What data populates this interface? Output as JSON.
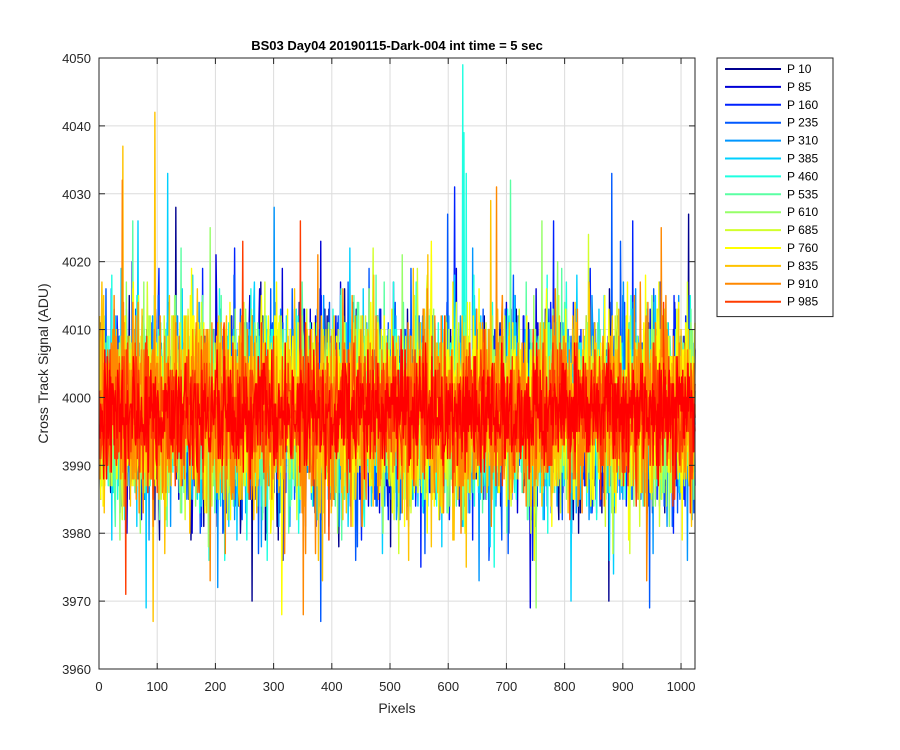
{
  "chart_data": {
    "type": "line",
    "title": "BS03 Day04 20190115-Dark-004 int time = 5 sec",
    "xlabel": "Pixels",
    "ylabel": "Cross Track Signal (ADU)",
    "xlim": [
      0,
      1024
    ],
    "ylim": [
      3960,
      4050
    ],
    "xticks": [
      0,
      100,
      200,
      300,
      400,
      500,
      600,
      700,
      800,
      900,
      1000
    ],
    "yticks": [
      3960,
      3970,
      3980,
      3990,
      4000,
      4010,
      4020,
      4030,
      4040,
      4050
    ],
    "grid": true,
    "legend_position": "outside-top-right",
    "n_points": 1024,
    "series": [
      {
        "name": "P 10",
        "color": "#00008f",
        "mean": 3998,
        "std": 7,
        "spikes": [
          [
            131,
            4028
          ],
          [
            262,
            3970
          ],
          [
            500,
            3978
          ],
          [
            875,
            3970
          ],
          [
            1012,
            4027
          ]
        ]
      },
      {
        "name": "P 85",
        "color": "#0000d6",
        "mean": 3998,
        "std": 7,
        "spikes": [
          [
            200,
            4021
          ],
          [
            380,
            4023
          ],
          [
            660,
            3985
          ],
          [
            740,
            3969
          ]
        ]
      },
      {
        "name": "P 160",
        "color": "#0022ff",
        "mean": 3998,
        "std": 7,
        "spikes": [
          [
            232,
            4022
          ],
          [
            450,
            3979
          ],
          [
            610,
            4031
          ],
          [
            916,
            4026
          ]
        ]
      },
      {
        "name": "P 235",
        "color": "#0059ff",
        "mean": 3998,
        "std": 7,
        "spikes": [
          [
            380,
            3967
          ],
          [
            598,
            4027
          ],
          [
            880,
            4033
          ],
          [
            945,
            3969
          ]
        ]
      },
      {
        "name": "P 310",
        "color": "#0096ff",
        "mean": 3998,
        "std": 7,
        "spikes": [
          [
            20,
            4016
          ],
          [
            300,
            4028
          ],
          [
            641,
            4022
          ]
        ]
      },
      {
        "name": "P 385",
        "color": "#00d0ff",
        "mean": 3998,
        "std": 7,
        "spikes": [
          [
            66,
            4026
          ],
          [
            117,
            4033
          ],
          [
            80,
            3969
          ],
          [
            430,
            4022
          ],
          [
            810,
            3970
          ]
        ]
      },
      {
        "name": "P 460",
        "color": "#1effe0",
        "mean": 3998,
        "std": 7,
        "spikes": [
          [
            624,
            4049
          ],
          [
            626,
            4039
          ],
          [
            630,
            4033
          ]
        ]
      },
      {
        "name": "P 535",
        "color": "#5affa3",
        "mean": 3998,
        "std": 7,
        "spikes": [
          [
            57,
            4026
          ],
          [
            140,
            4022
          ],
          [
            706,
            4032
          ]
        ]
      },
      {
        "name": "P 610",
        "color": "#96ff68",
        "mean": 3998,
        "std": 7,
        "spikes": [
          [
            190,
            4025
          ],
          [
            520,
            4021
          ],
          [
            750,
            3969
          ],
          [
            760,
            4026
          ]
        ]
      },
      {
        "name": "P 685",
        "color": "#d2ff2c",
        "mean": 3998,
        "std": 7,
        "spikes": [
          [
            840,
            4024
          ],
          [
            470,
            4022
          ]
        ]
      },
      {
        "name": "P 760",
        "color": "#ffff00",
        "mean": 3998,
        "std": 7,
        "spikes": [
          [
            313,
            3968
          ],
          [
            583,
            3982
          ]
        ]
      },
      {
        "name": "P 835",
        "color": "#ffc300",
        "mean": 3998,
        "std": 7,
        "spikes": [
          [
            40,
            4037
          ],
          [
            95,
            4042
          ],
          [
            92,
            3967
          ],
          [
            672,
            4029
          ]
        ]
      },
      {
        "name": "P 910",
        "color": "#ff8800",
        "mean": 3998,
        "std": 7,
        "spikes": [
          [
            39,
            4032
          ],
          [
            350,
            3968
          ],
          [
            682,
            4031
          ],
          [
            965,
            4025
          ]
        ]
      },
      {
        "name": "P 985",
        "color": "#ff3c00",
        "mean": 3998,
        "std": 5,
        "spikes": [
          [
            246,
            4023
          ],
          [
            345,
            4026
          ],
          [
            45,
            3971
          ]
        ]
      },
      {
        "name": "",
        "color": "#ff0000",
        "mean": 3998,
        "std": 4,
        "spikes": [],
        "in_legend": false
      }
    ]
  }
}
